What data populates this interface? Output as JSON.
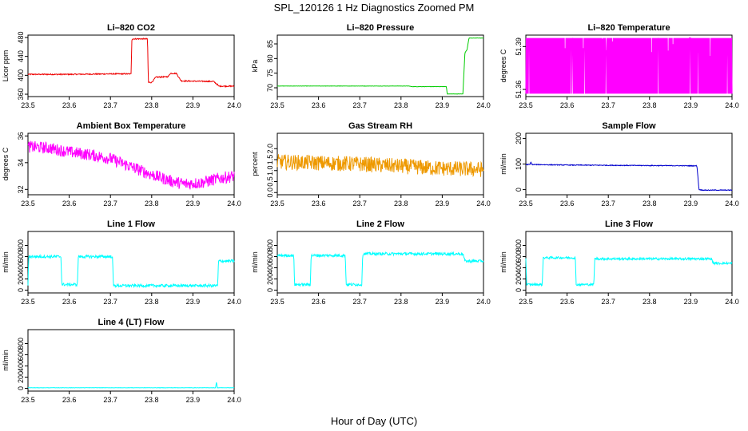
{
  "figure": {
    "title": "SPL_120126  1 Hz Diagnostics Zoomed PM",
    "xlabel": "Hour of Day (UTC)"
  },
  "chart_data": [
    {
      "type": "line",
      "title": "Li–820 CO2",
      "xlabel": "",
      "ylabel": "Licor ppm",
      "xlim": [
        23.5,
        24.0
      ],
      "ylim": [
        355,
        485
      ],
      "xticks": [
        "23.5",
        "23.6",
        "23.7",
        "23.8",
        "23.9",
        "24.0"
      ],
      "yticks": [
        {
          "v": 360,
          "t": "360"
        },
        {
          "v": 400,
          "t": "400"
        },
        {
          "v": 440,
          "t": "440"
        },
        {
          "v": 480,
          "t": "480"
        }
      ],
      "color": "#ee0000",
      "series": [
        {
          "x": [
            23.5,
            23.6,
            23.7,
            23.75,
            23.752,
            23.79,
            23.792,
            23.8,
            23.81,
            23.84,
            23.845,
            23.86,
            23.87,
            23.873,
            23.95,
            23.96,
            23.962,
            24.0
          ],
          "y": [
            402,
            402,
            403,
            403,
            477,
            477,
            385,
            385,
            396,
            397,
            404,
            404,
            390,
            388,
            387,
            380,
            377,
            377
          ]
        }
      ],
      "noise": 1.2
    },
    {
      "type": "line",
      "title": "Li–820 Pressure",
      "xlabel": "",
      "ylabel": "kPa",
      "xlim": [
        23.5,
        24.0
      ],
      "ylim": [
        67,
        88
      ],
      "xticks": [
        "23.5",
        "23.6",
        "23.7",
        "23.8",
        "23.9",
        "24.0"
      ],
      "yticks": [
        {
          "v": 70,
          "t": "70"
        },
        {
          "v": 75,
          "t": "75"
        },
        {
          "v": 80,
          "t": "80"
        },
        {
          "v": 85,
          "t": "85"
        }
      ],
      "color": "#00cc00",
      "series": [
        {
          "x": [
            23.5,
            23.82,
            23.825,
            23.91,
            23.912,
            23.95,
            23.955,
            23.96,
            23.965,
            24.0
          ],
          "y": [
            70.6,
            70.6,
            70.4,
            70.4,
            67.9,
            67.9,
            82,
            83,
            87,
            87
          ]
        }
      ],
      "noise": 0.05
    },
    {
      "type": "line",
      "title": "Li–820 Temperature",
      "xlabel": "",
      "ylabel": "degrees C",
      "xlim": [
        23.5,
        24.0
      ],
      "ylim": [
        51.355,
        51.398
      ],
      "xticks": [
        "23.5",
        "23.6",
        "23.7",
        "23.8",
        "23.9",
        "24.0"
      ],
      "yticks": [
        {
          "v": 51.36,
          "t": "51.36"
        },
        {
          "v": 51.39,
          "t": "51.39"
        }
      ],
      "color": "#ff00ff",
      "series": [
        {
          "x": [
            23.5,
            24.0
          ],
          "y": [
            51.375,
            51.375
          ]
        }
      ],
      "band": [
        51.357,
        51.396
      ]
    },
    {
      "type": "line",
      "title": "Ambient Box Temperature",
      "xlabel": "",
      "ylabel": "degrees C",
      "xlim": [
        23.5,
        24.0
      ],
      "ylim": [
        31.6,
        36.2
      ],
      "xticks": [
        "23.5",
        "23.6",
        "23.7",
        "23.8",
        "23.9",
        "24.0"
      ],
      "yticks": [
        {
          "v": 32,
          "t": "32"
        },
        {
          "v": 34,
          "t": "34"
        },
        {
          "v": 36,
          "t": "36"
        }
      ],
      "color": "#ff00ff",
      "series": [
        {
          "x": [
            23.5,
            23.55,
            23.6,
            23.65,
            23.7,
            23.75,
            23.8,
            23.85,
            23.88,
            23.92,
            23.96,
            24.0
          ],
          "y": [
            35.2,
            35.1,
            34.8,
            34.6,
            34.3,
            33.7,
            33.1,
            32.6,
            32.4,
            32.5,
            32.8,
            33.0
          ]
        }
      ],
      "noise": 0.45
    },
    {
      "type": "line",
      "title": "Gas Stream RH",
      "xlabel": "",
      "ylabel": "percent",
      "xlim": [
        23.5,
        24.0
      ],
      "ylim": [
        -0.1,
        2.7
      ],
      "xticks": [
        "23.5",
        "23.6",
        "23.7",
        "23.8",
        "23.9",
        "24.0"
      ],
      "yticks": [
        {
          "v": 0.0,
          "t": "0.0"
        },
        {
          "v": 0.5,
          "t": "0.5"
        },
        {
          "v": 1.0,
          "t": "1.0"
        },
        {
          "v": 1.5,
          "t": "1.5"
        },
        {
          "v": 2.0,
          "t": "2.0"
        }
      ],
      "color": "#ee9900",
      "series": [
        {
          "x": [
            23.5,
            23.6,
            23.7,
            23.8,
            23.9,
            24.0
          ],
          "y": [
            1.4,
            1.35,
            1.3,
            1.2,
            1.1,
            1.05
          ]
        }
      ],
      "noise": 0.35
    },
    {
      "type": "line",
      "title": "Sample Flow",
      "xlabel": "",
      "ylabel": "ml/min",
      "xlim": [
        23.5,
        24.0
      ],
      "ylim": [
        -20,
        220
      ],
      "xticks": [
        "23.5",
        "23.6",
        "23.7",
        "23.8",
        "23.9",
        "24.0"
      ],
      "yticks": [
        {
          "v": 0,
          "t": "0"
        },
        {
          "v": 100,
          "t": "100"
        },
        {
          "v": 200,
          "t": "200"
        }
      ],
      "color": "#0000cc",
      "series": [
        {
          "x": [
            23.5,
            23.51,
            23.512,
            23.515,
            23.6,
            23.7,
            23.8,
            23.915,
            23.92,
            23.93,
            24.0
          ],
          "y": [
            98,
            98,
            108,
            98,
            96,
            95,
            94,
            93,
            0,
            -2,
            -2
          ]
        }
      ],
      "noise": 1.5
    },
    {
      "type": "line",
      "title": "Line 1 Flow",
      "xlabel": "",
      "ylabel": "ml/min",
      "xlim": [
        23.5,
        24.0
      ],
      "ylim": [
        -50,
        1050
      ],
      "xticks": [
        "23.5",
        "23.6",
        "23.7",
        "23.8",
        "23.9",
        "24.0"
      ],
      "yticks": [
        {
          "v": 0,
          "t": "0"
        },
        {
          "v": 200,
          "t": "200"
        },
        {
          "v": 400,
          "t": "400"
        },
        {
          "v": 600,
          "t": "600"
        },
        {
          "v": 800,
          "t": "800"
        }
      ],
      "color": "#00ffff",
      "series": [
        {
          "x": [
            23.5,
            23.502,
            23.58,
            23.582,
            23.62,
            23.622,
            23.705,
            23.707,
            23.96,
            23.962,
            24.0
          ],
          "y": [
            100,
            600,
            600,
            100,
            100,
            600,
            600,
            80,
            80,
            520,
            520
          ]
        }
      ],
      "noise": 25
    },
    {
      "type": "line",
      "title": "Line 2 Flow",
      "xlabel": "",
      "ylabel": "ml/min",
      "xlim": [
        23.5,
        24.0
      ],
      "ylim": [
        -50,
        1050
      ],
      "xticks": [
        "23.5",
        "23.6",
        "23.7",
        "23.8",
        "23.9",
        "24.0"
      ],
      "yticks": [
        {
          "v": 0,
          "t": "0"
        },
        {
          "v": 200,
          "t": "200"
        },
        {
          "v": 400,
          "t": "400"
        },
        {
          "v": 600,
          "t": "600"
        },
        {
          "v": 800,
          "t": "800"
        }
      ],
      "color": "#00ffff",
      "series": [
        {
          "x": [
            23.5,
            23.54,
            23.542,
            23.58,
            23.582,
            23.665,
            23.667,
            23.705,
            23.707,
            23.95,
            23.955,
            24.0
          ],
          "y": [
            620,
            620,
            100,
            100,
            620,
            620,
            100,
            100,
            650,
            650,
            520,
            520
          ]
        }
      ],
      "noise": 25
    },
    {
      "type": "line",
      "title": "Line 3 Flow",
      "xlabel": "",
      "ylabel": "ml/min",
      "xlim": [
        23.5,
        24.0
      ],
      "ylim": [
        -50,
        1050
      ],
      "xticks": [
        "23.5",
        "23.6",
        "23.7",
        "23.8",
        "23.9",
        "24.0"
      ],
      "yticks": [
        {
          "v": 0,
          "t": "0"
        },
        {
          "v": 200,
          "t": "200"
        },
        {
          "v": 400,
          "t": "400"
        },
        {
          "v": 600,
          "t": "600"
        },
        {
          "v": 800,
          "t": "800"
        }
      ],
      "color": "#00ffff",
      "series": [
        {
          "x": [
            23.5,
            23.502,
            23.54,
            23.542,
            23.62,
            23.622,
            23.665,
            23.667,
            23.95,
            23.955,
            24.0
          ],
          "y": [
            580,
            100,
            100,
            580,
            580,
            100,
            100,
            560,
            560,
            480,
            480
          ]
        }
      ],
      "noise": 20
    },
    {
      "type": "line",
      "title": "Line 4 (LT) Flow",
      "xlabel": "",
      "ylabel": "ml/min",
      "xlim": [
        23.5,
        24.0
      ],
      "ylim": [
        -50,
        1050
      ],
      "xticks": [
        "23.5",
        "23.6",
        "23.7",
        "23.8",
        "23.9",
        "24.0"
      ],
      "yticks": [
        {
          "v": 0,
          "t": "0"
        },
        {
          "v": 200,
          "t": "200"
        },
        {
          "v": 400,
          "t": "400"
        },
        {
          "v": 600,
          "t": "600"
        },
        {
          "v": 800,
          "t": "800"
        }
      ],
      "color": "#00ffff",
      "series": [
        {
          "x": [
            23.5,
            23.955,
            23.957,
            23.959,
            23.961,
            24.0
          ],
          "y": [
            10,
            10,
            120,
            10,
            10,
            10
          ]
        }
      ],
      "noise": 3
    }
  ]
}
